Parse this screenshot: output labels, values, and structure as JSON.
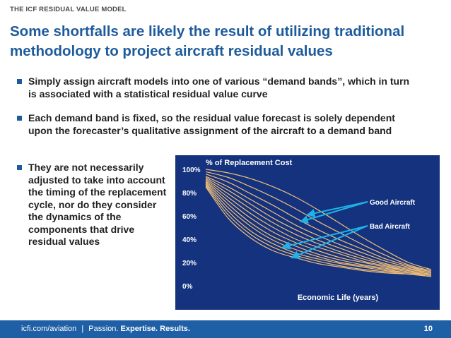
{
  "slide": {
    "kicker": "THE ICF RESIDUAL VALUE MODEL",
    "title": "Some shortfalls are likely the result of utilizing traditional methodology to project aircraft residual values",
    "bullets": [
      "Simply assign aircraft models into one of various “demand bands”, which in turn is associated with a statistical residual value curve",
      "Each demand band is fixed, so the residual value forecast is solely dependent upon the forecaster’s qualitative assignment of the aircraft to a demand band",
      "They are not necessarily adjusted to take into account the timing of the replacement  cycle, nor do they consider the dynamics of the components that drive residual values"
    ]
  },
  "chart_data": {
    "type": "line",
    "title": "% of Replacement Cost",
    "xlabel": "Economic Life (years)",
    "ylabel": "",
    "ylim": [
      0,
      100
    ],
    "yticks": [
      "100%",
      "80%",
      "60%",
      "40%",
      "20%",
      "0%"
    ],
    "ytick_values": [
      100,
      80,
      60,
      40,
      20,
      0
    ],
    "x": [
      0,
      0.1,
      0.2,
      0.3,
      0.4,
      0.5,
      0.6,
      0.7,
      0.8,
      0.9,
      1.0
    ],
    "series": [
      {
        "values": [
          100,
          97,
          92,
          85,
          76,
          65,
          53,
          41,
          30,
          20,
          14
        ]
      },
      {
        "values": [
          98,
          93,
          85,
          76,
          66,
          55,
          45,
          35,
          26,
          18,
          13
        ]
      },
      {
        "values": [
          96,
          89,
          79,
          69,
          58,
          48,
          39,
          31,
          23,
          17,
          12
        ]
      },
      {
        "values": [
          94,
          85,
          74,
          63,
          52,
          43,
          35,
          28,
          21,
          16,
          12
        ]
      },
      {
        "values": [
          93,
          82,
          70,
          58,
          48,
          39,
          32,
          25,
          19,
          15,
          11
        ]
      },
      {
        "values": [
          92,
          79,
          66,
          54,
          44,
          36,
          29,
          23,
          18,
          14,
          11
        ]
      },
      {
        "values": [
          91,
          76,
          62,
          50,
          40,
          33,
          27,
          21,
          17,
          13,
          10
        ]
      },
      {
        "values": [
          90,
          73,
          58,
          46,
          37,
          30,
          24,
          20,
          16,
          13,
          10
        ]
      },
      {
        "values": [
          89,
          70,
          54,
          42,
          34,
          27,
          22,
          18,
          15,
          12,
          9
        ]
      },
      {
        "values": [
          88,
          67,
          51,
          39,
          31,
          25,
          20,
          17,
          14,
          11,
          9
        ]
      },
      {
        "values": [
          87,
          64,
          47,
          36,
          28,
          23,
          19,
          16,
          13,
          11,
          9
        ]
      },
      {
        "values": [
          86,
          61,
          44,
          33,
          26,
          21,
          17,
          14,
          12,
          10,
          8
        ]
      },
      {
        "values": [
          85,
          58,
          41,
          30,
          24,
          19,
          16,
          13,
          11,
          10,
          8
        ]
      }
    ],
    "annotations": [
      {
        "text": "Good Aircraft",
        "arrow_targets": [
          [
            0.45,
            61
          ],
          [
            0.42,
            55
          ]
        ]
      },
      {
        "text": "Bad Aircraft",
        "arrow_targets": [
          [
            0.34,
            33
          ],
          [
            0.38,
            24
          ]
        ]
      }
    ],
    "colors": {
      "background": "#14327d",
      "line": "#f0be78",
      "text": "#ffffff",
      "arrow": "#1fb2e8"
    }
  },
  "footer": {
    "url": "icfi.com/aviation",
    "separator": "|",
    "tagline_plain": "Passion.",
    "tagline_bold": "Expertise. Results.",
    "page_number": "10"
  }
}
